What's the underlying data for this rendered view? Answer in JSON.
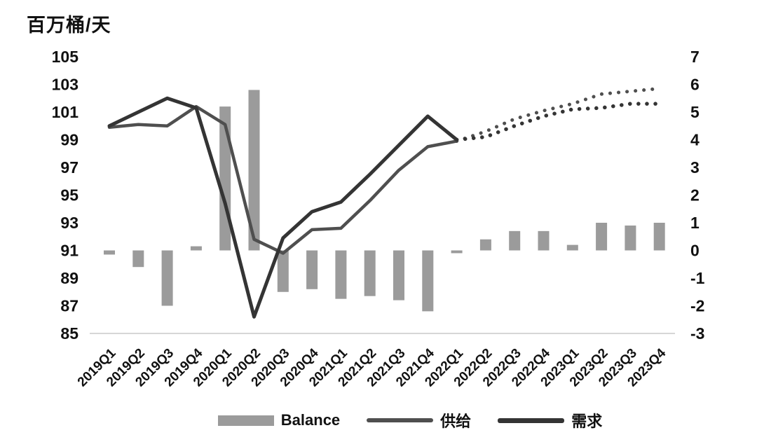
{
  "chart_data": {
    "type": "combo-bar-line",
    "title": "",
    "ylabel": "百万桶/天",
    "legend_position": "bottom",
    "grid": false,
    "categories": [
      "2019Q1",
      "2019Q2",
      "2019Q3",
      "2019Q4",
      "2020Q1",
      "2020Q2",
      "2020Q3",
      "2020Q4",
      "2021Q1",
      "2021Q2",
      "2021Q3",
      "2021Q4",
      "2022Q1",
      "2022Q2",
      "2022Q3",
      "2022Q4",
      "2023Q1",
      "2023Q2",
      "2023Q3",
      "2023Q4"
    ],
    "left_axis": {
      "min": 85,
      "max": 105,
      "ticks": [
        105,
        103,
        101,
        99,
        97,
        95,
        93,
        91,
        89,
        87,
        85
      ]
    },
    "right_axis": {
      "min": -3,
      "max": 7,
      "ticks": [
        7,
        6,
        5,
        4,
        3,
        2,
        1,
        0,
        -1,
        -2,
        -3
      ]
    },
    "forecast_start_index": 12,
    "bar_series": {
      "name": "Balance",
      "axis": "right",
      "color": "#9b9b9b",
      "values": [
        -0.15,
        -0.6,
        -2.0,
        0.15,
        5.2,
        5.8,
        -1.5,
        -1.4,
        -1.75,
        -1.65,
        -1.8,
        -2.2,
        -0.1,
        0.4,
        0.7,
        0.7,
        0.2,
        1.0,
        0.9,
        1.0
      ]
    },
    "line_series": [
      {
        "name": "供给",
        "axis": "left",
        "color": "#4f4f4f",
        "width": 4.5,
        "values": [
          99.9,
          100.1,
          100.0,
          101.4,
          100.1,
          91.8,
          90.8,
          92.5,
          92.6,
          94.6,
          96.8,
          98.5,
          98.9,
          99.6,
          100.5,
          101.1,
          101.6,
          102.3,
          102.5,
          102.7
        ]
      },
      {
        "name": "需求",
        "axis": "left",
        "color": "#343434",
        "width": 5,
        "values": [
          100.0,
          101.0,
          102.0,
          101.3,
          94.4,
          86.2,
          91.9,
          93.8,
          94.5,
          96.5,
          98.6,
          100.7,
          99.0,
          99.2,
          100.0,
          100.7,
          101.2,
          101.3,
          101.6,
          101.6
        ]
      }
    ],
    "colors": {
      "axis_line": "#c9c9c9",
      "text": "#111111",
      "background": "#ffffff"
    }
  }
}
